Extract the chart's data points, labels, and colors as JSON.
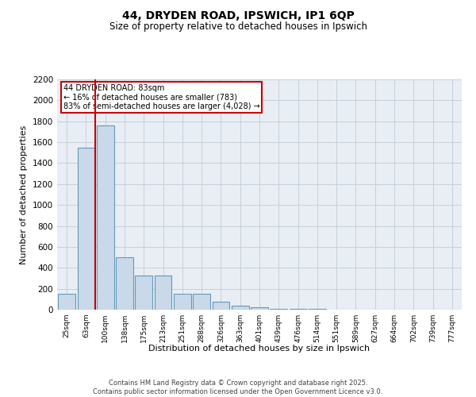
{
  "title": "44, DRYDEN ROAD, IPSWICH, IP1 6QP",
  "subtitle": "Size of property relative to detached houses in Ipswich",
  "xlabel": "Distribution of detached houses by size in Ipswich",
  "ylabel": "Number of detached properties",
  "categories": [
    "25sqm",
    "63sqm",
    "100sqm",
    "138sqm",
    "175sqm",
    "213sqm",
    "251sqm",
    "288sqm",
    "326sqm",
    "363sqm",
    "401sqm",
    "439sqm",
    "476sqm",
    "514sqm",
    "551sqm",
    "589sqm",
    "627sqm",
    "664sqm",
    "702sqm",
    "739sqm",
    "777sqm"
  ],
  "values": [
    150,
    1550,
    1760,
    500,
    330,
    330,
    150,
    150,
    75,
    35,
    20,
    10,
    5,
    5,
    0,
    0,
    0,
    0,
    0,
    0,
    0
  ],
  "bar_color": "#c9d9ea",
  "bar_edge_color": "#6699bb",
  "vline_color": "#cc0000",
  "vline_x": 1.47,
  "annotation_text": "44 DRYDEN ROAD: 83sqm\n← 16% of detached houses are smaller (783)\n83% of semi-detached houses are larger (4,028) →",
  "annotation_box_color": "#cc0000",
  "ylim": [
    0,
    2200
  ],
  "yticks": [
    0,
    200,
    400,
    600,
    800,
    1000,
    1200,
    1400,
    1600,
    1800,
    2000,
    2200
  ],
  "footer_line1": "Contains HM Land Registry data © Crown copyright and database right 2025.",
  "footer_line2": "Contains public sector information licensed under the Open Government Licence v3.0.",
  "background_color": "#ffffff",
  "plot_bg_color": "#e8eef4",
  "grid_color": "#c0ccd8"
}
